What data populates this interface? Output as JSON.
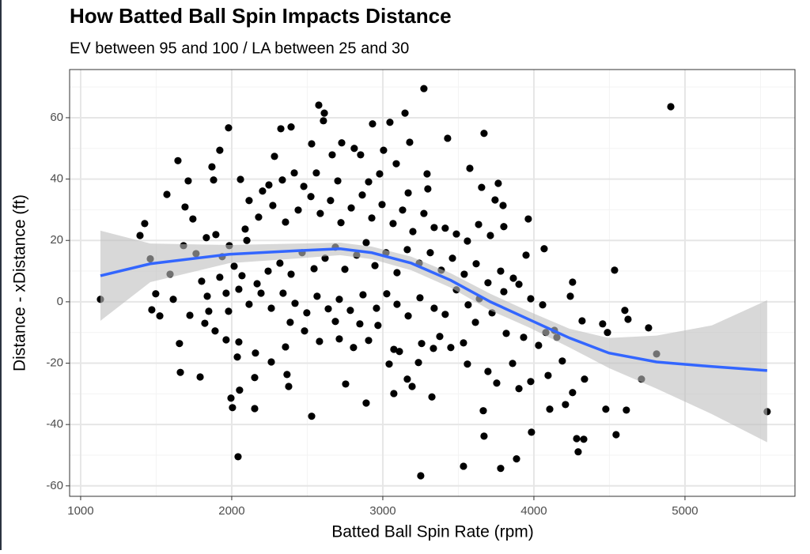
{
  "chart_data": {
    "type": "scatter",
    "title": "How Batted Ball Spin Impacts Distance",
    "subtitle": "EV between 95 and 100 / LA between 25 and 30",
    "x_label": "Batted Ball Spin Rate (rpm)",
    "y_label": "Distance - xDistance (ft)",
    "xlim": [
      927,
      5728
    ],
    "ylim": [
      -63.4,
      75.7
    ],
    "xticks": [
      1000,
      2000,
      3000,
      4000,
      5000
    ],
    "yticks": [
      -60,
      -40,
      -20,
      0,
      20,
      40,
      60
    ],
    "xminorticks": [
      1500,
      2500,
      3500,
      4500,
      5500
    ],
    "yminorticks": [
      -50,
      -30,
      -10,
      10,
      30,
      50,
      70
    ],
    "grid": true,
    "color": "#000000",
    "x": [
      1131,
      1461,
      1592,
      1393,
      1424,
      1571,
      1644,
      1654,
      1660,
      1471,
      1524,
      1497,
      1791,
      1921,
      1979,
      1995,
      2042,
      2005,
      2152,
      2366,
      2377,
      2529,
      2576,
      2613,
      2607,
      2325,
      2393,
      2728,
      2932,
      3047,
      3147,
      3272,
      3178,
      3429,
      3670,
      3251,
      3534,
      3780,
      3885,
      3984,
      3670,
      3665,
      3325,
      3073,
      2890,
      2754,
      4283,
      4330,
      4293,
      4476,
      4544,
      4612,
      4534,
      4623,
      4602,
      4759,
      4712,
      4812,
      4906,
      5544,
      4256,
      4241,
      4319,
      4455,
      4487,
      4335,
      4094,
      4256,
      4209,
      4105,
      3948,
      4068,
      3963,
      3796,
      3764,
      3654,
      3576,
      3743,
      3413,
      3293,
      3298,
      2979,
      3005,
      2853,
      2665,
      2811,
      2529,
      2414,
      2283,
      2246,
      2058,
      1869,
      1880,
      1712,
      1743,
      1691,
      1832,
      1895,
      1937,
      1838,
      1801,
      1681,
      1764,
      1822,
      1890,
      1963,
      2047,
      2037,
      2052,
      2157,
      2152,
      2262,
      2356,
      2387,
      2482,
      2581,
      2686,
      2712,
      2806,
      2848,
      2906,
      2968,
      3042,
      3073,
      3110,
      3162,
      3194,
      3236,
      3257,
      3335,
      3377,
      3450,
      3534,
      3560,
      3613,
      3696,
      3754,
      3817,
      3859,
      3901,
      3979,
      3932,
      4031,
      4079,
      4136,
      4188,
      4152,
      4058,
      3979,
      3901,
      3801,
      3723,
      3639,
      3565,
      3487,
      3413,
      3340,
      3246,
      3168,
      3094,
      3026,
      2958,
      2869,
      2785,
      2712,
      2639,
      2565,
      2497,
      2419,
      2340,
      2262,
      2194,
      2115,
      2047,
      1979,
      1921,
      1963,
      2068,
      2168,
      2241,
      2319,
      2393,
      2466,
      2545,
      2618,
      2686,
      2749,
      2827,
      2890,
      2948,
      3021,
      3094,
      3162,
      3241,
      3314,
      3387,
      3461,
      3539,
      3618,
      3696,
      3780,
      3864,
      2089,
      2178,
      2272,
      2356,
      2440,
      2524,
      2586,
      2654,
      2723,
      2791,
      2864,
      2927,
      2995,
      3068,
      3131,
      3199,
      3272,
      3340,
      3487,
      3560,
      3634,
      3712,
      3801,
      2115,
      2204,
      2335,
      2477,
      2560,
      2702,
      2906,
      3089,
      3168,
      1984,
      2016,
      1613,
      1723,
      1848,
      2100
    ],
    "values": [
      0.8,
      14,
      9,
      21.6,
      25.5,
      35,
      46,
      -13.6,
      -23,
      -2.6,
      -4.6,
      2.6,
      -24.5,
      49.4,
      56.7,
      -31.4,
      -50.5,
      -34.5,
      -34.8,
      -23.7,
      -27.6,
      -37.3,
      64.1,
      61.5,
      59,
      56.4,
      57,
      51.8,
      58,
      58.5,
      61.5,
      69.5,
      52,
      53.3,
      54.9,
      -56.7,
      -53.6,
      -54.3,
      -51.2,
      -42.5,
      -43.8,
      -35.5,
      -31,
      -29.9,
      -33,
      -26.8,
      -44.6,
      -44.8,
      -48.9,
      -35,
      -43.3,
      -35.3,
      10.3,
      -5.7,
      -2.8,
      -8.5,
      -25.2,
      -17,
      63.6,
      -35.8,
      6.4,
      1.8,
      -6.2,
      -7.2,
      -10,
      -25.2,
      -24,
      -29.6,
      -33.5,
      -35,
      15.2,
      17.3,
      27,
      31.4,
      38.6,
      37.3,
      43.5,
      33.2,
      24,
      41.7,
      36.8,
      41.7,
      49.4,
      47.9,
      47.9,
      50,
      51.5,
      42,
      47.4,
      38.1,
      39.9,
      44,
      39.7,
      39.4,
      27,
      30.9,
      20.9,
      21.9,
      14.7,
      1.8,
      6.7,
      18.3,
      15.7,
      -7,
      -9.5,
      -12.4,
      -13.1,
      -18,
      -28.8,
      -16.7,
      -24.7,
      -19.6,
      -14.7,
      -6.7,
      -9.5,
      -12.9,
      -6.4,
      -12.1,
      -14.9,
      -7.2,
      -12.6,
      -7.7,
      -20.3,
      -15.5,
      -16.2,
      -25.2,
      -27.6,
      -19.8,
      -13.6,
      -15.2,
      -11.3,
      -14.9,
      -13.4,
      -20.3,
      -6.7,
      -22.7,
      -26.5,
      -10.3,
      -20.1,
      -28.3,
      -26,
      -11.6,
      -14.2,
      -10,
      -9.3,
      -19.3,
      -11.6,
      -1,
      1,
      5.7,
      3.3,
      -3.6,
      1,
      -1,
      3.9,
      -4.1,
      -2.1,
      1.3,
      -4.6,
      -0.8,
      2.6,
      -2.1,
      2.3,
      -2.8,
      0.8,
      -2.3,
      1.8,
      -3.6,
      -0.5,
      2.8,
      -2.1,
      2.8,
      -0.8,
      4.1,
      -3.1,
      8,
      2.8,
      8.5,
      5.9,
      10,
      12.6,
      9,
      16,
      10.8,
      14.2,
      17.8,
      10.6,
      15.2,
      19.3,
      11.8,
      16,
      9.5,
      17,
      12.6,
      16,
      10.3,
      14.2,
      9,
      12.4,
      6.2,
      10,
      7.7,
      23.7,
      27.6,
      31.4,
      26,
      29.9,
      34.3,
      28.8,
      33,
      25.8,
      30.6,
      34.8,
      27.3,
      31.7,
      25.5,
      29.9,
      22.9,
      28.8,
      24.2,
      22.1,
      19.8,
      25.2,
      21.6,
      24.5,
      33,
      36.1,
      39.7,
      37.6,
      42,
      39.4,
      39.1,
      45,
      35.5,
      18.3,
      11.6,
      0.8,
      -4.4,
      -3.1,
      20
    ],
    "smooth": {
      "color": "#3366ff",
      "band_color": "#bebebe",
      "x": [
        1131,
        1461,
        1984,
        2456,
        2717,
        2927,
        3188,
        3450,
        3712,
        3974,
        4236,
        4497,
        4812,
        5178,
        5544
      ],
      "values": [
        8.5,
        12.4,
        15.5,
        16.7,
        17.3,
        16,
        12.6,
        7,
        0,
        -5.9,
        -11.8,
        -16.7,
        -19.6,
        -21.1,
        -22.4
      ],
      "upper": [
        23.2,
        19,
        18.5,
        19,
        19.3,
        18,
        14.7,
        9.3,
        2.6,
        -3.3,
        -8.8,
        -11.8,
        -11,
        -7.7,
        0.5
      ],
      "lower": [
        -6.2,
        6.4,
        12.6,
        14.2,
        15.2,
        13.9,
        10.3,
        4.6,
        -2.8,
        -8.5,
        -14.9,
        -21.6,
        -28.3,
        -36.6,
        -45.8
      ]
    }
  }
}
